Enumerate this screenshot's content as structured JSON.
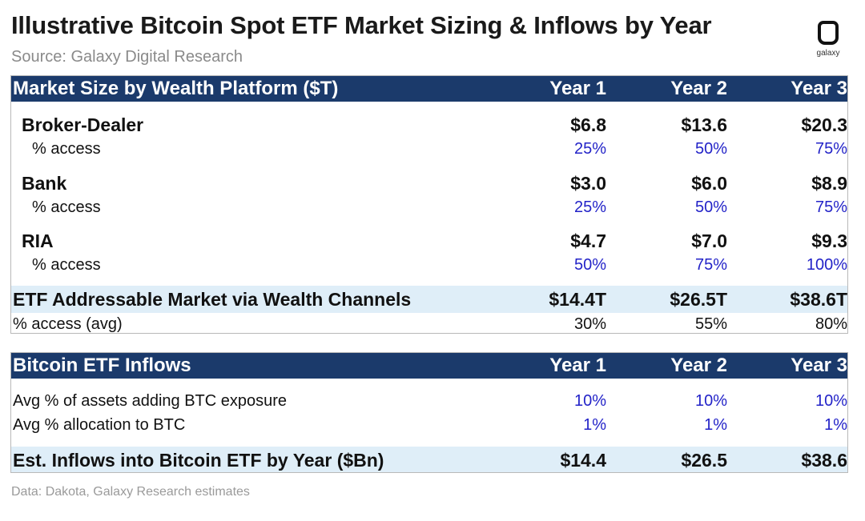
{
  "title": "Illustrative Bitcoin Spot ETF Market Sizing & Inflows by Year",
  "source": "Source: Galaxy Digital Research",
  "footer": "Data: Dakota, Galaxy Research estimates",
  "logo_text": "galaxy",
  "colors": {
    "header": "#1b3a6b",
    "band": "#dfeef8",
    "input_blue": "#2323c8"
  },
  "chart_data": {
    "type": "table",
    "tables": [
      {
        "header": "Market Size by Wealth Platform ($T)",
        "years": [
          "Year 1",
          "Year 2",
          "Year 3"
        ],
        "platforms": [
          {
            "name": "Broker-Dealer",
            "size": [
              "$6.8",
              "$13.6",
              "$20.3"
            ],
            "access_label": "% access",
            "access": [
              "25%",
              "50%",
              "75%"
            ]
          },
          {
            "name": "Bank",
            "size": [
              "$3.0",
              "$6.0",
              "$8.9"
            ],
            "access_label": "% access",
            "access": [
              "25%",
              "50%",
              "75%"
            ]
          },
          {
            "name": "RIA",
            "size": [
              "$4.7",
              "$7.0",
              "$9.3"
            ],
            "access_label": "% access",
            "access": [
              "50%",
              "75%",
              "100%"
            ]
          }
        ],
        "total": {
          "label": "ETF Addressable Market via Wealth Channels",
          "values": [
            "$14.4T",
            "$26.5T",
            "$38.6T"
          ]
        },
        "avg_access": {
          "label": "% access (avg)",
          "values": [
            "30%",
            "55%",
            "80%"
          ]
        }
      },
      {
        "header": "Bitcoin ETF Inflows",
        "years": [
          "Year 1",
          "Year 2",
          "Year 3"
        ],
        "rows": [
          {
            "label": "Avg % of assets adding BTC exposure",
            "values": [
              "10%",
              "10%",
              "10%"
            ]
          },
          {
            "label": "Avg % allocation to BTC",
            "values": [
              "1%",
              "1%",
              "1%"
            ]
          }
        ],
        "total": {
          "label": "Est. Inflows into Bitcoin ETF by Year ($Bn)",
          "values": [
            "$14.4",
            "$26.5",
            "$38.6"
          ]
        }
      }
    ]
  }
}
